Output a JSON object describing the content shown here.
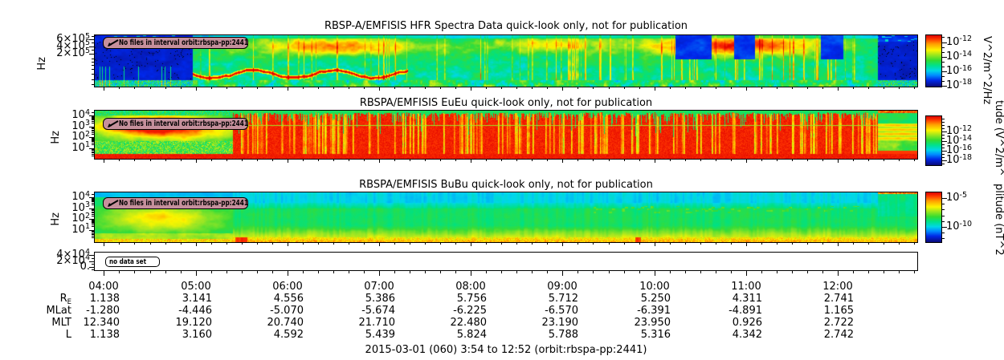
{
  "page": {
    "caption": "2015-03-01 (060) 3:54 to 12:52 (orbit:rbspa-pp:2441)"
  },
  "colors": {
    "background": "#ffffff",
    "axis": "#000000",
    "badge_bg": "#c6909c",
    "badge_border": "#000000",
    "colormap_top": "#dd0000",
    "colormap_bottom": "#0a0a78"
  },
  "chart_data": {
    "type": "heatmap",
    "panels": [
      {
        "title": "RBSP-A/EMFISIS  HFR Spectra Data quick-look only, not for publication",
        "ylabel": "Hz",
        "yscale": "log",
        "ytick_labels": [
          {
            "b": "6×10",
            "e": "5"
          },
          {
            "b": "4×10",
            "e": "5"
          },
          {
            "b": "2×10",
            "e": "5"
          }
        ],
        "badge": "No files in interval orbit:rbspa-pp:2441",
        "colorbar": {
          "unit": "V^2/m^2/Hz",
          "tick_labels": [
            {
              "b": "10",
              "e": "-12"
            },
            {
              "b": "10",
              "e": "-14"
            },
            {
              "b": "10",
              "e": "-16"
            },
            {
              "b": "10",
              "e": "-18"
            }
          ]
        }
      },
      {
        "title": "RBSPA/EMFISIS  EuEu quick-look only, not for publication",
        "ylabel": "Hz",
        "yscale": "log",
        "ytick_labels": [
          {
            "b": "10",
            "e": "4"
          },
          {
            "b": "10",
            "e": "3"
          },
          {
            "b": "10",
            "e": "2"
          },
          {
            "b": "10",
            "e": "1"
          }
        ],
        "badge": "No files in interval orbit:rbspa-pp:2441",
        "colorbar": {
          "unit": "tude (V^2/m^",
          "tick_labels": [
            {
              "b": "10",
              "e": "-12"
            },
            {
              "b": "10",
              "e": "-14"
            },
            {
              "b": "10",
              "e": "-16"
            },
            {
              "b": "10",
              "e": "-18"
            }
          ]
        }
      },
      {
        "title": "RBSPA/EMFISIS  BuBu quick-look only, not for publication",
        "ylabel": "Hz",
        "yscale": "log",
        "ytick_labels": [
          {
            "b": "10",
            "e": "4"
          },
          {
            "b": "10",
            "e": "3"
          },
          {
            "b": "10",
            "e": "2"
          },
          {
            "b": "10",
            "e": "1"
          }
        ],
        "badge": "No files in interval orbit:rbspa-pp:2441",
        "colorbar": {
          "unit": "plitude (nT^2",
          "tick_labels": [
            {
              "b": "10",
              "e": "-5"
            },
            {
              "b": "10",
              "e": "-10"
            }
          ]
        }
      },
      {
        "title": "",
        "ylabel": "",
        "yscale": "linear",
        "ytick_labels": [
          {
            "b": "4×10",
            "e": "4"
          },
          {
            "b": "2×10",
            "e": "4"
          },
          {
            "b": "0.",
            "e": ""
          }
        ],
        "badge": "no data set",
        "colorbar": null
      }
    ],
    "time_axis": {
      "start_label": "3:54",
      "end_label": "12:52",
      "tick_labels": [
        "04:00",
        "05:00",
        "06:00",
        "07:00",
        "08:00",
        "09:00",
        "10:00",
        "11:00",
        "12:00"
      ],
      "minor_tick_minutes": 10
    },
    "ephemeris": {
      "row_labels": [
        {
          "t": "R",
          "sub": "E"
        },
        {
          "t": "MLat",
          "sub": ""
        },
        {
          "t": "MLT",
          "sub": ""
        },
        {
          "t": "L",
          "sub": ""
        }
      ],
      "columns": [
        {
          "time": "04:00",
          "values": [
            "1.138",
            "-1.280",
            "12.340",
            "1.138"
          ]
        },
        {
          "time": "05:00",
          "values": [
            "3.141",
            "-4.446",
            "19.120",
            "3.160"
          ]
        },
        {
          "time": "06:00",
          "values": [
            "4.556",
            "-5.070",
            "20.740",
            "4.592"
          ]
        },
        {
          "time": "07:00",
          "values": [
            "5.386",
            "-5.674",
            "21.710",
            "5.439"
          ]
        },
        {
          "time": "08:00",
          "values": [
            "5.756",
            "-6.225",
            "22.480",
            "5.824"
          ]
        },
        {
          "time": "09:00",
          "values": [
            "5.712",
            "-6.570",
            "23.190",
            "5.788"
          ]
        },
        {
          "time": "10:00",
          "values": [
            "5.250",
            "-6.391",
            "23.950",
            "5.316"
          ]
        },
        {
          "time": "11:00",
          "values": [
            "4.311",
            "-4.891",
            "0.926",
            "4.342"
          ]
        },
        {
          "time": "12:00",
          "values": [
            "2.741",
            "1.165",
            "2.722",
            "2.742"
          ]
        }
      ]
    }
  }
}
